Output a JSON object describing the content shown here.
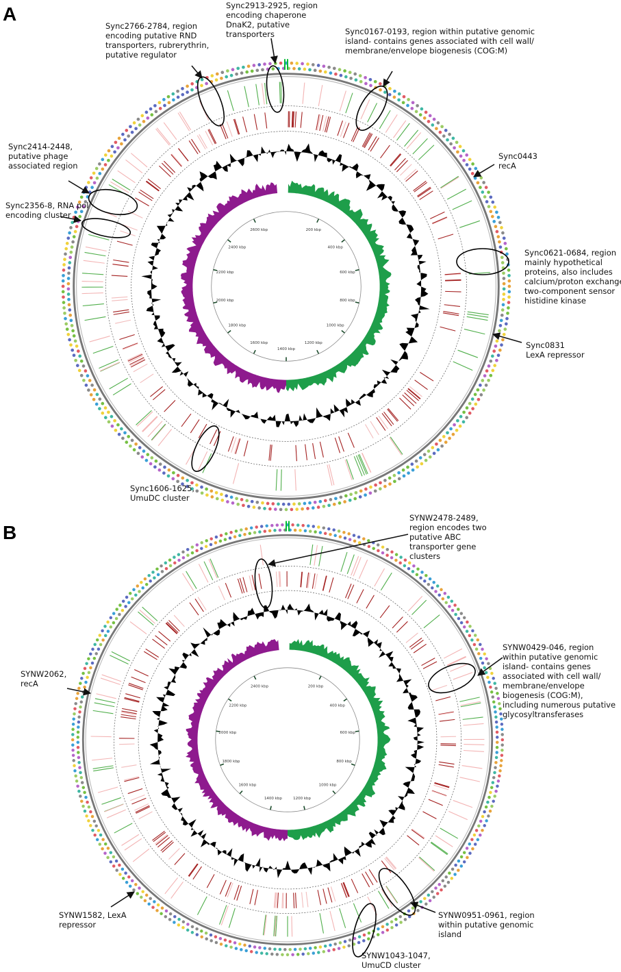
{
  "panels": [
    {
      "letter": "A",
      "ticks": [
        "200 kbp",
        "400 kbp",
        "600 kbp",
        "800 kbp",
        "1000 kbp",
        "1200 kbp",
        "1400 kbp",
        "1600 kbp",
        "1800 kbp",
        "2000 kbp",
        "2200 kbp",
        "2400 kbp",
        "2600 kbp"
      ],
      "annotations": [
        {
          "id": "sync2913",
          "lines": [
            "Sync2913-2925, region",
            "encoding chaperone",
            "DnaK2, putative",
            "transporters"
          ]
        },
        {
          "id": "sync2766",
          "lines": [
            "Sync2766-2784, region",
            "encoding putative RND",
            "transporters, rubrerythrin,",
            "putative regulator"
          ]
        },
        {
          "id": "sync0167",
          "lines": [
            "Sync0167-0193, region within putative genomic",
            "island- contains genes associated with cell wall/",
            "membrane/envelope biogenesis (COG:M)"
          ]
        },
        {
          "id": "sync0443",
          "lines": [
            "Sync0443",
            "recA"
          ]
        },
        {
          "id": "sync2414",
          "lines": [
            "Sync2414-2448,",
            "putative phage",
            "associated region"
          ]
        },
        {
          "id": "sync2356",
          "lines": [
            "Sync2356-8, RNA pol",
            "encoding cluster"
          ]
        },
        {
          "id": "sync0621",
          "lines": [
            "Sync0621-0684, region",
            "mainly hypothetical",
            "proteins, also includes",
            "calcium/proton exchanger,",
            "two-component sensor",
            "histidine kinase"
          ]
        },
        {
          "id": "sync0831",
          "lines": [
            "Sync0831",
            "LexA repressor"
          ]
        },
        {
          "id": "sync1606",
          "lines": [
            "Sync1606-1625,",
            "UmuDC cluster"
          ]
        }
      ]
    },
    {
      "letter": "B",
      "ticks": [
        "200 kbp",
        "400 kbp",
        "600 kbp",
        "800 kbp",
        "1000 kbp",
        "1200 kbp",
        "1400 kbp",
        "1600 kbp",
        "1800 kbp",
        "2000 kbp",
        "2200 kbp",
        "2400 kbp"
      ],
      "annotations": [
        {
          "id": "synw2478",
          "lines": [
            "SYNW2478-2489,",
            "region encodes two",
            "putative ABC",
            "transporter gene",
            "clusters"
          ]
        },
        {
          "id": "synw0429",
          "lines": [
            "SYNW0429-046, region",
            "within putative genomic",
            "island- contains genes",
            "associated with cell wall/",
            "membrane/envelope",
            "biogenesis (COG:M),",
            "including numerous putative",
            "glycosyltransferases"
          ]
        },
        {
          "id": "synw2062",
          "lines": [
            "SYNW2062,",
            "recA"
          ]
        },
        {
          "id": "synw1582",
          "lines": [
            "SYNW1582, LexA",
            "repressor"
          ]
        },
        {
          "id": "synw0951",
          "lines": [
            "SYNW0951-0961, region",
            "within putative genomic",
            "island"
          ]
        },
        {
          "id": "synw1043",
          "lines": [
            "SYNW1043-1047,",
            "UmuCD cluster"
          ]
        }
      ]
    }
  ]
}
